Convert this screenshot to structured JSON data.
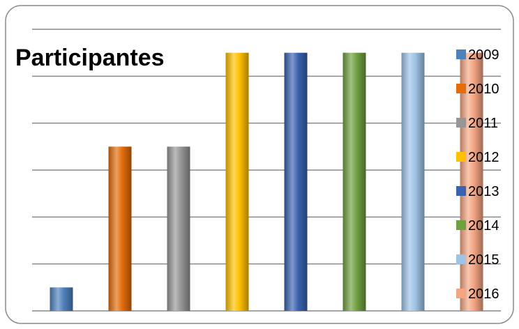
{
  "chart_data": {
    "type": "bar",
    "title": "Participantes",
    "xlabel": "",
    "ylabel": "",
    "ylim": [
      0,
      6
    ],
    "grid": true,
    "legend_position": "right",
    "series": [
      {
        "name": "2009",
        "value": 0.5,
        "color": "#4f81bd"
      },
      {
        "name": "2010",
        "value": 3.5,
        "color": "#e46c0a"
      },
      {
        "name": "2011",
        "value": 3.5,
        "color": "#969696"
      },
      {
        "name": "2012",
        "value": 5.5,
        "color": "#ffc000"
      },
      {
        "name": "2013",
        "value": 5.5,
        "color": "#3a62b0"
      },
      {
        "name": "2014",
        "value": 5.5,
        "color": "#70a040"
      },
      {
        "name": "2015",
        "value": 5.5,
        "color": "#9dc3e6"
      },
      {
        "name": "2016",
        "value": 5.5,
        "color": "#f4a582"
      }
    ]
  }
}
